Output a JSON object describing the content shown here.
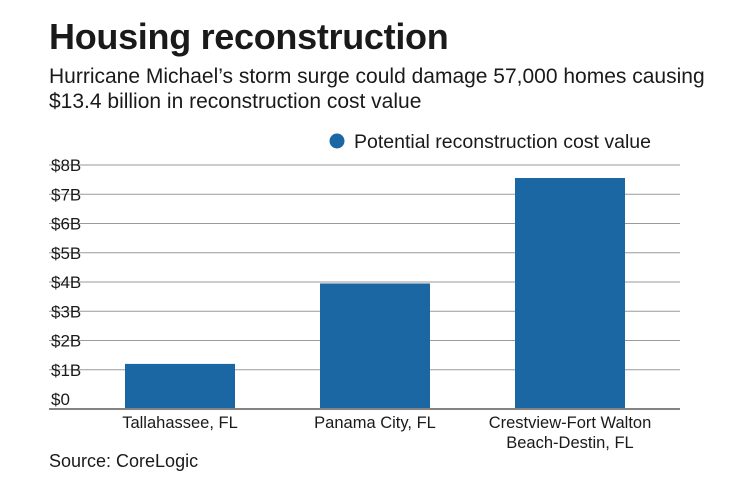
{
  "header": {
    "title": "Housing reconstruction",
    "subtitle": "Hurricane Michael’s storm surge could damage 57,000 homes causing $13.4 billion in reconstruction cost value"
  },
  "footer": {
    "source": "Source: CoreLogic"
  },
  "chart_data": {
    "type": "bar",
    "legend_position": "top-right",
    "grid": true,
    "categories": [
      [
        "Tallahassee, FL"
      ],
      [
        "Panama City, FL"
      ],
      [
        "Crestview-Fort Walton",
        "Beach-Destin, FL"
      ]
    ],
    "series": [
      {
        "name": "Potential reconstruction cost value",
        "color": "#1b67a3",
        "values": [
          1.2,
          3.95,
          8.27
        ]
      }
    ],
    "ylim": [
      0,
      8
    ],
    "y_ticks": [
      0,
      1,
      2,
      3,
      4,
      5,
      6,
      7,
      8
    ],
    "y_tick_labels": [
      "$0",
      "$1B",
      "$2B",
      "$3B",
      "$4B",
      "$5B",
      "$6B",
      "$7B",
      "$8B"
    ],
    "xlabel": "",
    "ylabel": "",
    "colors": {
      "bar": "#1b67a3",
      "grid": "#9a9a9a",
      "axis": "#5a5a5a",
      "text": "#1a1a1a"
    }
  }
}
